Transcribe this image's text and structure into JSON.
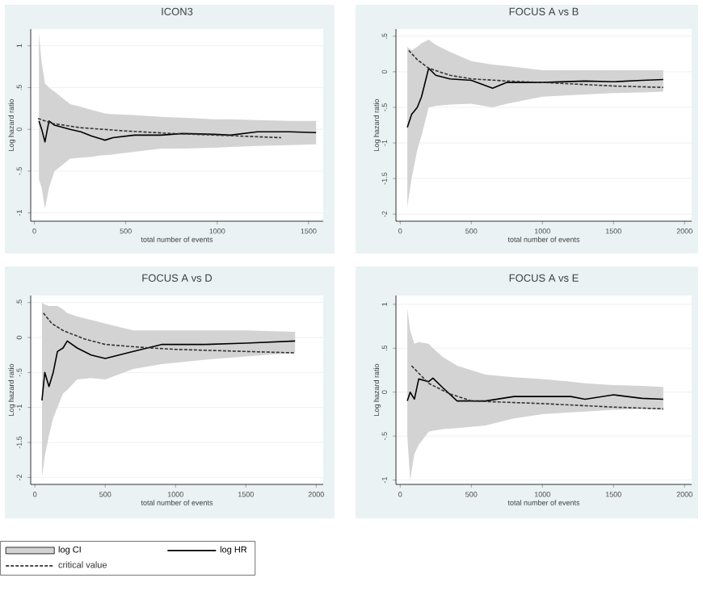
{
  "chart_data": [
    {
      "type": "line",
      "title": "ICON3",
      "xlabel": "total number of events",
      "ylabel": "Log hazard ratio",
      "xlim": [
        -20,
        1580
      ],
      "ylim": [
        -1.1,
        1.2
      ],
      "xticks": [
        0,
        500,
        1000,
        1500
      ],
      "yticks": [
        {
          "value": -1,
          "label": "-1"
        },
        {
          "value": -0.5,
          "label": "-.5"
        },
        {
          "value": 0,
          "label": "0"
        },
        {
          "value": 0.5,
          "label": ".5"
        },
        {
          "value": 1,
          "label": "1"
        }
      ],
      "grid": "y",
      "series": [
        {
          "color": "#000000",
          "line_style": "solid",
          "x": [
            25,
            40,
            58,
            80,
            110,
            196,
            254,
            313,
            371,
            386,
            430,
            547,
            693,
            810,
            985,
            1073,
            1219,
            1395,
            1541
          ],
          "values": [
            0.1,
            0.0,
            -0.15,
            0.1,
            0.05,
            0.0,
            -0.03,
            -0.08,
            -0.12,
            -0.13,
            -0.1,
            -0.07,
            -0.07,
            -0.05,
            -0.06,
            -0.07,
            -0.03,
            -0.03,
            -0.04
          ],
          "upper": [
            1.15,
            0.8,
            0.55,
            0.5,
            0.45,
            0.3,
            0.27,
            0.23,
            0.2,
            0.19,
            0.18,
            0.17,
            0.15,
            0.14,
            0.12,
            0.12,
            0.11,
            0.1,
            0.1
          ],
          "lower": [
            -0.6,
            -0.7,
            -0.95,
            -0.7,
            -0.5,
            -0.35,
            -0.34,
            -0.33,
            -0.31,
            -0.31,
            -0.3,
            -0.27,
            -0.23,
            -0.23,
            -0.22,
            -0.21,
            -0.2,
            -0.19,
            -0.18
          ]
        },
        {
          "color": "#333333",
          "line_style": "dashed",
          "x": [
            20,
            100,
            250,
            500,
            750,
            1000,
            1350
          ],
          "values": [
            0.13,
            0.07,
            0.02,
            -0.02,
            -0.05,
            -0.07,
            -0.1
          ]
        }
      ]
    },
    {
      "type": "line",
      "title": "FOCUS A vs B",
      "xlabel": "total number of events",
      "ylabel": "Log hazard ratio",
      "xlim": [
        -30,
        2050
      ],
      "ylim": [
        -2.1,
        0.6
      ],
      "xticks": [
        0,
        500,
        1000,
        1500,
        2000
      ],
      "yticks": [
        {
          "value": -2,
          "label": "-2"
        },
        {
          "value": -1.5,
          "label": "-1.5"
        },
        {
          "value": -1,
          "label": "-1"
        },
        {
          "value": -0.5,
          "label": "-.5"
        },
        {
          "value": 0,
          "label": "0"
        },
        {
          "value": 0.5,
          "label": ".5"
        }
      ],
      "grid": "y",
      "series": [
        {
          "color": "#000000",
          "line_style": "solid",
          "x": [
            50,
            80,
            120,
            150,
            200,
            250,
            350,
            500,
            650,
            750,
            1000,
            1300,
            1500,
            1700,
            1850
          ],
          "values": [
            -0.78,
            -0.6,
            -0.5,
            -0.35,
            0.05,
            -0.05,
            -0.1,
            -0.12,
            -0.23,
            -0.15,
            -0.15,
            -0.13,
            -0.14,
            -0.12,
            -0.11
          ],
          "upper": [
            0.35,
            0.3,
            0.35,
            0.4,
            0.45,
            0.38,
            0.28,
            0.15,
            0.1,
            0.08,
            0.02,
            0.02,
            0.02,
            0.02,
            0.02
          ],
          "lower": [
            -1.9,
            -1.5,
            -1.1,
            -0.9,
            -0.5,
            -0.48,
            -0.46,
            -0.45,
            -0.5,
            -0.45,
            -0.35,
            -0.32,
            -0.3,
            -0.29,
            -0.28
          ]
        },
        {
          "color": "#333333",
          "line_style": "dashed",
          "x": [
            60,
            120,
            200,
            350,
            500,
            750,
            1000,
            1500,
            1850
          ],
          "values": [
            0.3,
            0.17,
            0.05,
            -0.05,
            -0.1,
            -0.13,
            -0.15,
            -0.2,
            -0.22
          ]
        }
      ]
    },
    {
      "type": "line",
      "title": "FOCUS A vs D",
      "xlabel": "total number of events",
      "ylabel": "Log hazard ratio",
      "xlim": [
        -30,
        2050
      ],
      "ylim": [
        -2.1,
        0.6
      ],
      "xticks": [
        0,
        500,
        1000,
        1500,
        2000
      ],
      "yticks": [
        {
          "value": -2,
          "label": "-2"
        },
        {
          "value": -1.5,
          "label": "-1.5"
        },
        {
          "value": -1,
          "label": "-1"
        },
        {
          "value": -0.5,
          "label": "-.5"
        },
        {
          "value": 0,
          "label": "0"
        },
        {
          "value": 0.5,
          "label": ".5"
        }
      ],
      "grid": "y",
      "legend": "bottom",
      "annotations": [
        "log CI"
      ],
      "series": [
        {
          "name": "log HR",
          "color": "#000000",
          "line_style": "solid",
          "x": [
            50,
            70,
            100,
            130,
            160,
            200,
            230,
            300,
            400,
            500,
            700,
            900,
            1200,
            1500,
            1850
          ],
          "values": [
            -0.9,
            -0.5,
            -0.7,
            -0.5,
            -0.2,
            -0.15,
            -0.05,
            -0.15,
            -0.25,
            -0.3,
            -0.2,
            -0.1,
            -0.1,
            -0.08,
            -0.05
          ],
          "upper": [
            0.5,
            0.47,
            0.45,
            0.45,
            0.45,
            0.4,
            0.35,
            0.3,
            0.25,
            0.2,
            0.1,
            0.1,
            0.1,
            0.1,
            0.08
          ],
          "lower": [
            -2.0,
            -1.7,
            -1.4,
            -1.15,
            -1.0,
            -0.8,
            -0.75,
            -0.6,
            -0.58,
            -0.6,
            -0.45,
            -0.38,
            -0.32,
            -0.27,
            -0.22
          ]
        },
        {
          "name": "critical value",
          "color": "#333333",
          "line_style": "dashed",
          "x": [
            60,
            120,
            200,
            350,
            500,
            750,
            1000,
            1500,
            1850
          ],
          "values": [
            0.35,
            0.2,
            0.1,
            -0.02,
            -0.1,
            -0.14,
            -0.17,
            -0.2,
            -0.22
          ]
        }
      ]
    },
    {
      "type": "line",
      "title": "FOCUS A vs E",
      "xlabel": "total number of events",
      "ylabel": "Log hazard ratio",
      "xlim": [
        -30,
        2050
      ],
      "ylim": [
        -1.05,
        1.1
      ],
      "xticks": [
        0,
        500,
        1000,
        1500,
        2000
      ],
      "yticks": [
        {
          "value": -1,
          "label": "-1"
        },
        {
          "value": -0.5,
          "label": "-.5"
        },
        {
          "value": 0,
          "label": "0"
        },
        {
          "value": 0.5,
          "label": ".5"
        },
        {
          "value": 1,
          "label": "1"
        }
      ],
      "grid": "y",
      "series": [
        {
          "color": "#000000",
          "line_style": "solid",
          "x": [
            50,
            70,
            100,
            130,
            200,
            230,
            300,
            400,
            600,
            800,
            1000,
            1200,
            1300,
            1500,
            1700,
            1850
          ],
          "values": [
            -0.1,
            0.0,
            -0.08,
            0.15,
            0.12,
            0.16,
            0.05,
            -0.1,
            -0.1,
            -0.05,
            -0.05,
            -0.05,
            -0.08,
            -0.03,
            -0.07,
            -0.08
          ],
          "upper": [
            0.95,
            0.7,
            0.55,
            0.57,
            0.55,
            0.5,
            0.4,
            0.3,
            0.2,
            0.17,
            0.15,
            0.12,
            0.1,
            0.08,
            0.07,
            0.06
          ],
          "lower": [
            -0.5,
            -1.0,
            -0.7,
            -0.6,
            -0.45,
            -0.44,
            -0.42,
            -0.41,
            -0.38,
            -0.3,
            -0.25,
            -0.23,
            -0.22,
            -0.2,
            -0.19,
            -0.2
          ]
        },
        {
          "color": "#333333",
          "line_style": "dashed",
          "x": [
            80,
            200,
            350,
            500,
            1000,
            1500,
            1850
          ],
          "values": [
            0.3,
            0.1,
            -0.02,
            -0.1,
            -0.13,
            -0.17,
            -0.19
          ]
        }
      ]
    }
  ]
}
